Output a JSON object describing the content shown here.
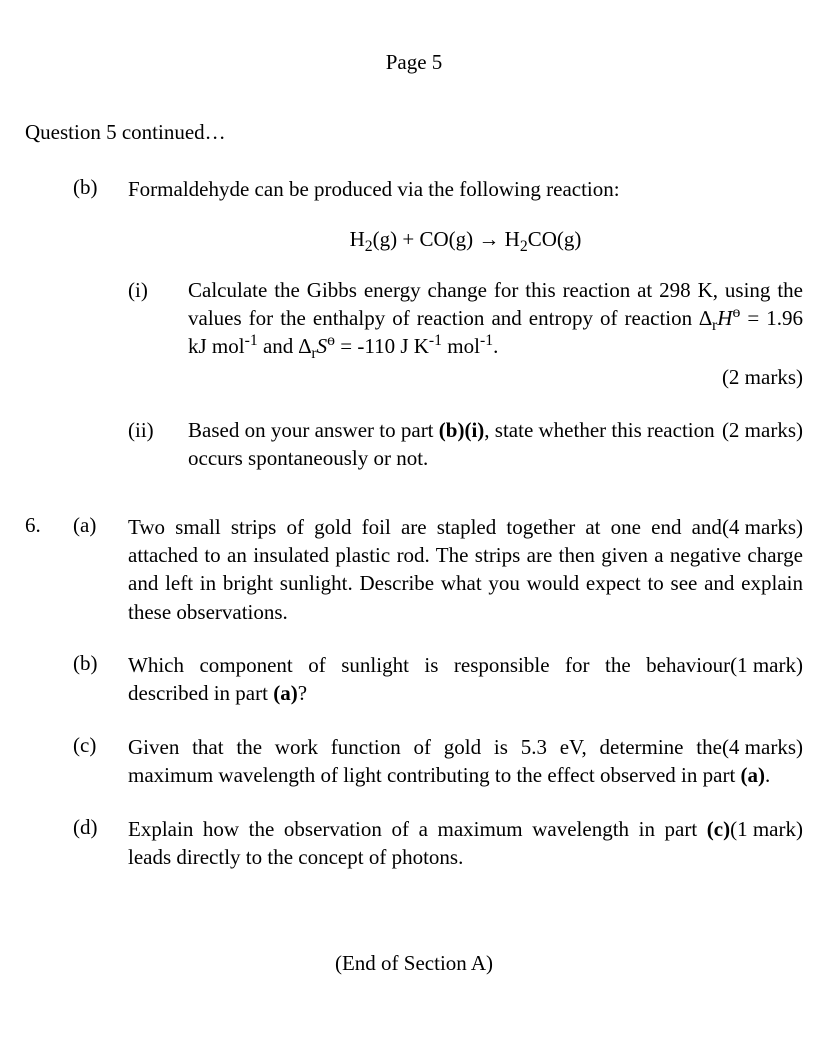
{
  "page_header": "Page 5",
  "continued_text": "Question 5 continued…",
  "q5": {
    "b": {
      "label": "(b)",
      "intro": "Formaldehyde can be produced via the following reaction:",
      "equation_html": "H<sub>2</sub>(g) + CO(g) → H<sub>2</sub>CO(g)",
      "i": {
        "label": "(i)",
        "text_html": "Calculate the Gibbs energy change for this reaction at 298 K, using the values for the enthalpy of reaction and entropy of reaction ∆<sub>r</sub><i>H</i><sup>ɵ</sup> = 1.96 kJ mol<sup>-1</sup> and ∆<sub>r</sub><i>S</i><sup>ɵ</sup> = -110 J K<sup>-1</sup> mol<sup>-1</sup>.",
        "marks": "(2 marks)"
      },
      "ii": {
        "label": "(ii)",
        "text_html": "Based on your answer to part <b>(b)(i)</b>, state whether this reaction occurs spontaneously or not.",
        "marks": "(2 marks)"
      }
    }
  },
  "q6": {
    "number": "6.",
    "a": {
      "label": "(a)",
      "text_html": "Two small strips of gold foil are stapled together at one end and attached to an insulated plastic rod. The strips are then given a negative charge and left in bright sunlight. Describe what you would expect to see and explain these observations.",
      "marks": "(4 marks)"
    },
    "b": {
      "label": "(b)",
      "text_html": "Which component of sunlight is responsible for the behaviour described in part <b>(a)</b>?",
      "marks": "(1 mark)"
    },
    "c": {
      "label": "(c)",
      "text_html": "Given that the work function of gold is 5.3 eV, determine the maximum wavelength of light contributing to the effect observed in part <b>(a)</b>.",
      "marks": "(4 marks)"
    },
    "d": {
      "label": "(d)",
      "text_html": "Explain how the observation of a maximum wavelength in part <b>(c)</b> leads directly to the concept of photons.",
      "marks": "(1 mark)"
    }
  },
  "end_section": "(End of Section A)"
}
